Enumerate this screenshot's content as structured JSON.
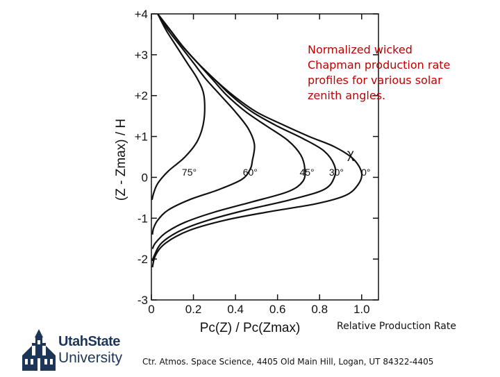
{
  "chart_data": {
    "type": "line",
    "title": "",
    "xlabel": "Pc(Z) / Pc(Zmax)",
    "ylabel": "(Z - Zmax) / H",
    "xlim": [
      0,
      1.08
    ],
    "ylim": [
      -3,
      4
    ],
    "xticks": [
      "0",
      "0.2",
      "0.4",
      "0.6",
      "0.8",
      "1.0"
    ],
    "yticks": [
      "-3",
      "-2",
      "-1",
      "0",
      "+1",
      "+2",
      "+3",
      "+4"
    ],
    "grid": false,
    "legend_symbol": "χ",
    "series": [
      {
        "name": "0°",
        "label_pos": [
          1.02,
          0.3
        ],
        "points": [
          [
            0.03,
            4.0
          ],
          [
            0.09,
            3.6
          ],
          [
            0.15,
            3.2
          ],
          [
            0.22,
            2.8
          ],
          [
            0.3,
            2.4
          ],
          [
            0.39,
            2.0
          ],
          [
            0.5,
            1.6
          ],
          [
            0.62,
            1.3
          ],
          [
            0.75,
            1.0
          ],
          [
            0.87,
            0.75
          ],
          [
            0.96,
            0.45
          ],
          [
            1.0,
            0.1
          ],
          [
            0.98,
            -0.2
          ],
          [
            0.92,
            -0.45
          ],
          [
            0.78,
            -0.65
          ],
          [
            0.55,
            -0.85
          ],
          [
            0.35,
            -1.05
          ],
          [
            0.18,
            -1.3
          ],
          [
            0.07,
            -1.6
          ],
          [
            0.02,
            -1.9
          ],
          [
            0.005,
            -2.2
          ]
        ]
      },
      {
        "name": "30°",
        "label_pos": [
          0.88,
          0.3
        ],
        "points": [
          [
            0.03,
            4.0
          ],
          [
            0.09,
            3.6
          ],
          [
            0.15,
            3.2
          ],
          [
            0.22,
            2.8
          ],
          [
            0.3,
            2.4
          ],
          [
            0.38,
            2.0
          ],
          [
            0.48,
            1.6
          ],
          [
            0.6,
            1.25
          ],
          [
            0.72,
            0.95
          ],
          [
            0.82,
            0.65
          ],
          [
            0.87,
            0.3
          ],
          [
            0.87,
            0.0
          ],
          [
            0.82,
            -0.3
          ],
          [
            0.66,
            -0.55
          ],
          [
            0.45,
            -0.8
          ],
          [
            0.27,
            -1.05
          ],
          [
            0.14,
            -1.3
          ],
          [
            0.05,
            -1.6
          ],
          [
            0.015,
            -1.9
          ],
          [
            0.005,
            -2.05
          ]
        ]
      },
      {
        "name": "45°",
        "label_pos": [
          0.74,
          0.3
        ],
        "points": [
          [
            0.03,
            4.0
          ],
          [
            0.09,
            3.6
          ],
          [
            0.15,
            3.2
          ],
          [
            0.22,
            2.8
          ],
          [
            0.29,
            2.4
          ],
          [
            0.36,
            2.0
          ],
          [
            0.45,
            1.6
          ],
          [
            0.55,
            1.25
          ],
          [
            0.65,
            0.9
          ],
          [
            0.71,
            0.55
          ],
          [
            0.73,
            0.2
          ],
          [
            0.72,
            -0.1
          ],
          [
            0.65,
            -0.35
          ],
          [
            0.48,
            -0.6
          ],
          [
            0.3,
            -0.85
          ],
          [
            0.16,
            -1.1
          ],
          [
            0.07,
            -1.35
          ],
          [
            0.02,
            -1.6
          ],
          [
            0.005,
            -1.75
          ]
        ]
      },
      {
        "name": "60°",
        "label_pos": [
          0.47,
          0.3
        ],
        "points": [
          [
            0.03,
            4.0
          ],
          [
            0.08,
            3.6
          ],
          [
            0.14,
            3.2
          ],
          [
            0.2,
            2.8
          ],
          [
            0.26,
            2.4
          ],
          [
            0.33,
            2.0
          ],
          [
            0.4,
            1.6
          ],
          [
            0.46,
            1.2
          ],
          [
            0.49,
            0.8
          ],
          [
            0.48,
            0.4
          ],
          [
            0.47,
            0.2
          ],
          [
            0.43,
            -0.05
          ],
          [
            0.32,
            -0.3
          ],
          [
            0.18,
            -0.55
          ],
          [
            0.08,
            -0.8
          ],
          [
            0.03,
            -1.05
          ],
          [
            0.01,
            -1.25
          ],
          [
            0.005,
            -1.4
          ]
        ]
      },
      {
        "name": "75°",
        "label_pos": [
          0.18,
          0.3
        ],
        "points": [
          [
            0.03,
            4.0
          ],
          [
            0.07,
            3.6
          ],
          [
            0.12,
            3.2
          ],
          [
            0.17,
            2.8
          ],
          [
            0.22,
            2.4
          ],
          [
            0.25,
            2.0
          ],
          [
            0.25,
            1.4
          ],
          [
            0.22,
            0.9
          ],
          [
            0.16,
            0.5
          ],
          [
            0.08,
            0.15
          ],
          [
            0.03,
            -0.15
          ],
          [
            0.01,
            -0.4
          ],
          [
            0.003,
            -0.55
          ]
        ]
      }
    ]
  },
  "caption": {
    "line1": "Normalized wicked",
    "line2": "Chapman production rate",
    "line3": "profiles for various solar",
    "line4": "zenith angles."
  },
  "rel_label": "Relative Production Rate",
  "footer": "Ctr. Atmos. Space Science, 4405 Old Main Hill, Logan, UT  84322-4405",
  "logo": {
    "word1": "UtahState",
    "word2": "University",
    "color": "#1d3557"
  }
}
